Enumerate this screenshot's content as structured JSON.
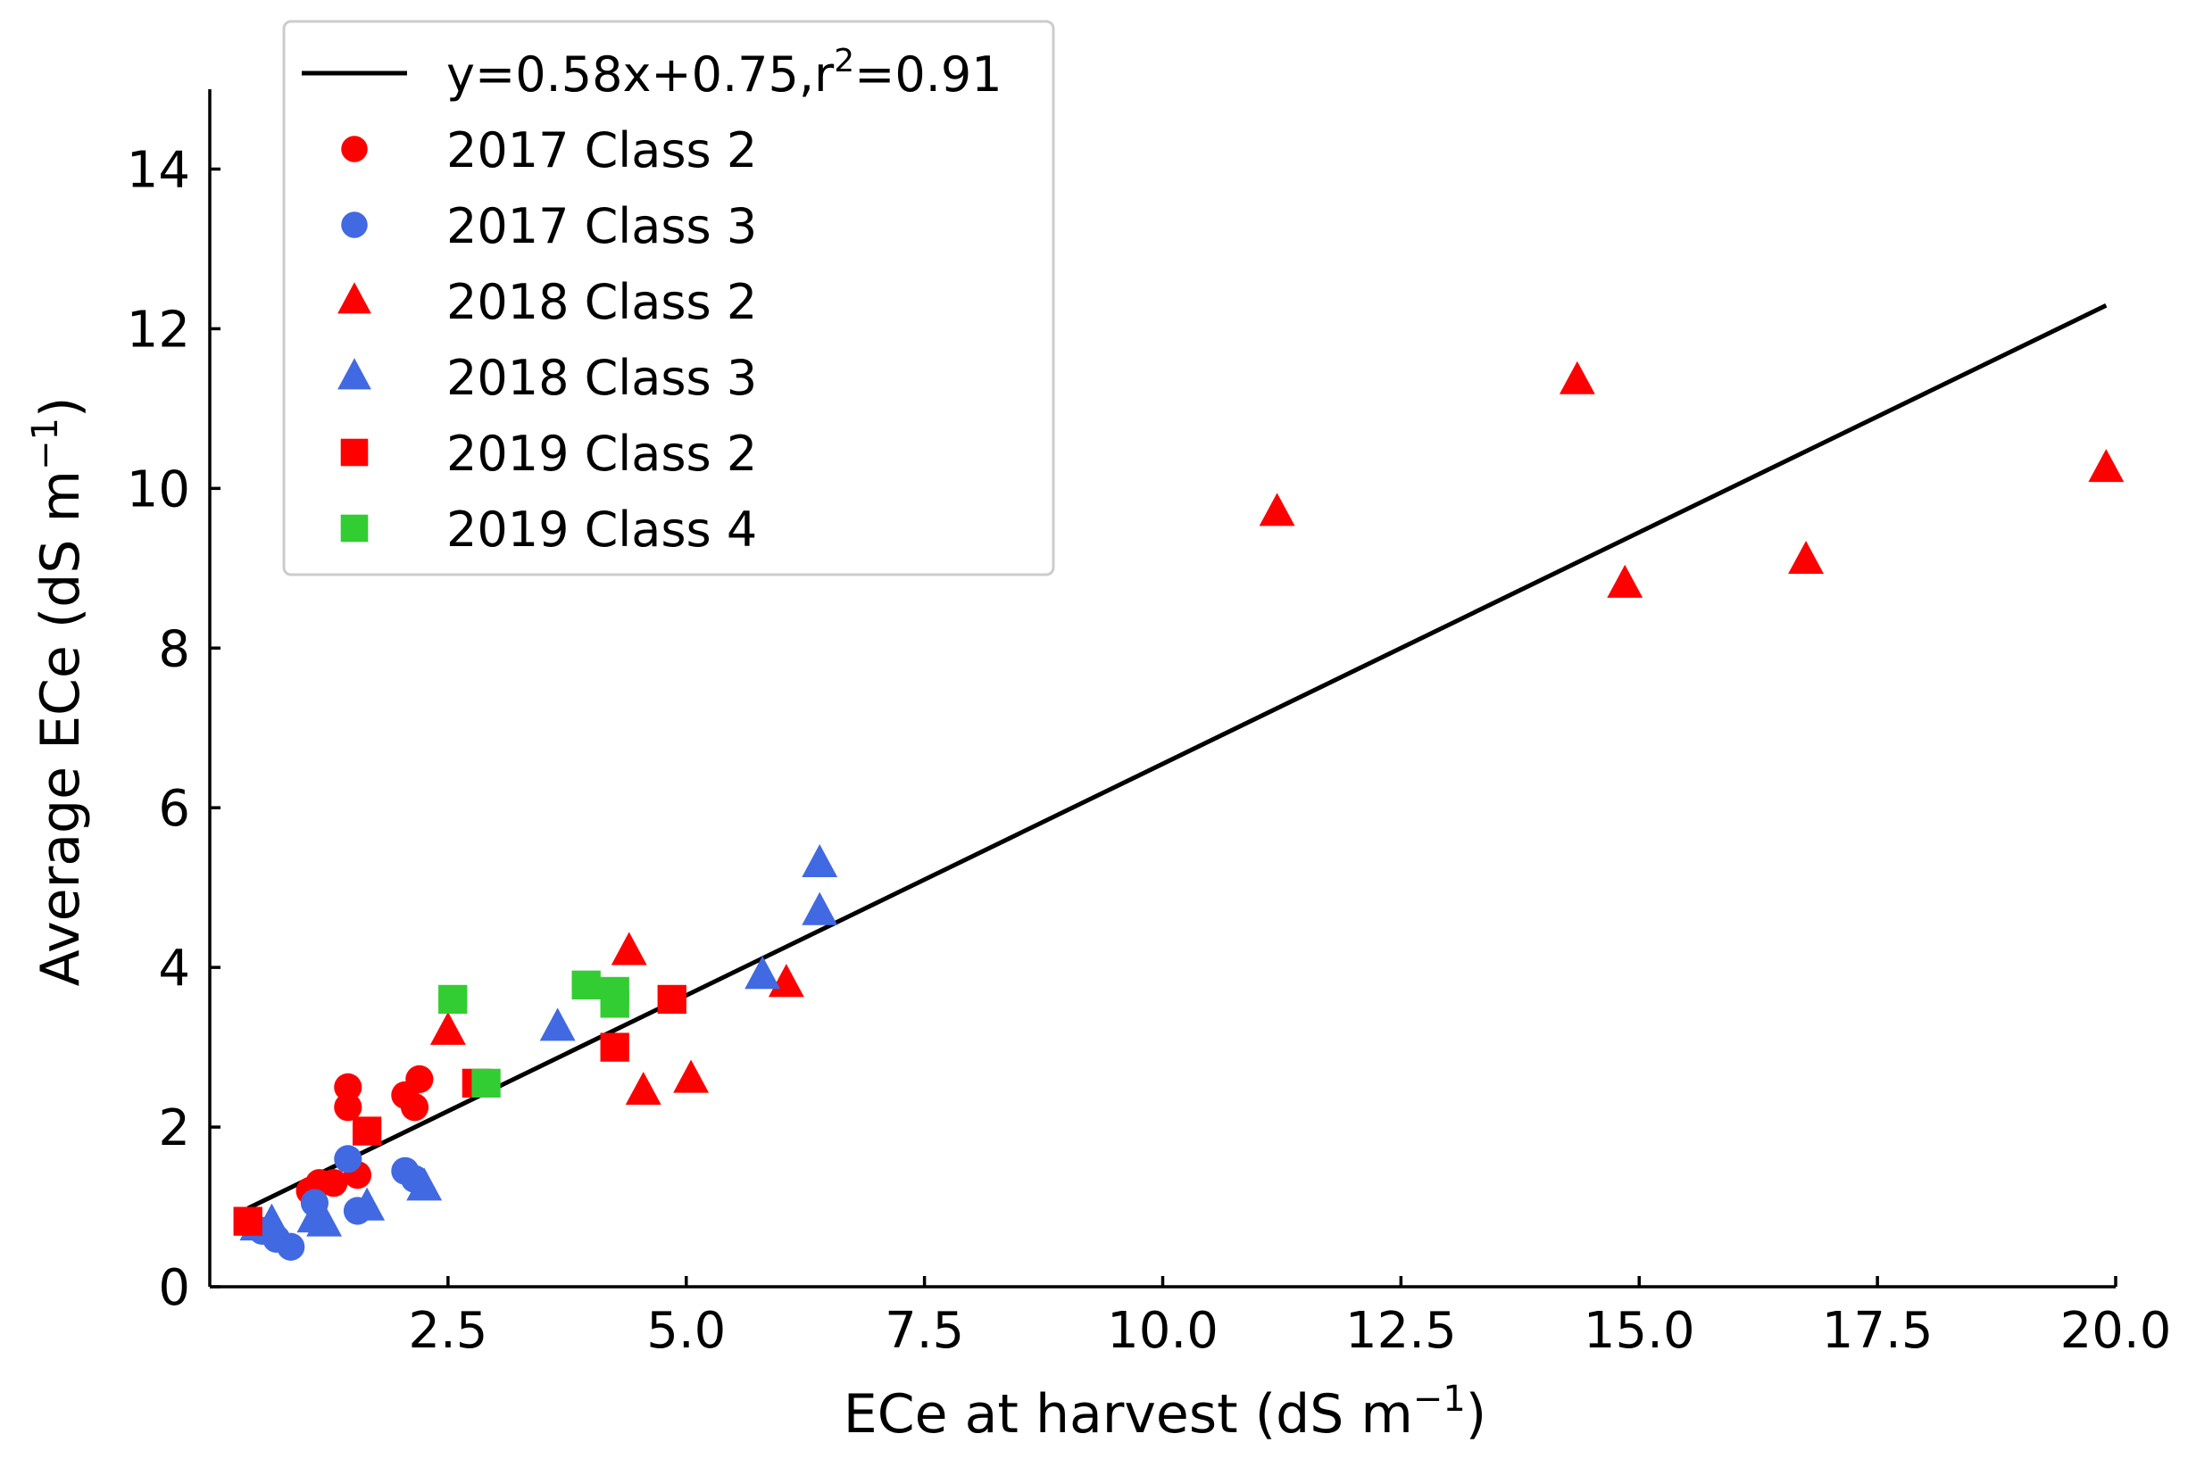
{
  "chart_data": {
    "type": "scatter",
    "title": "",
    "xlabel": "ECe at harvest (dS m",
    "xlabel_sup": "−1",
    "xlabel_end": ")",
    "ylabel": "Average ECe (dS m",
    "ylabel_sup": "−1",
    "ylabel_end": ")",
    "xlim": [
      0.0,
      20.0
    ],
    "ylim": [
      0,
      15
    ],
    "xticks": [
      2.5,
      5.0,
      7.5,
      10.0,
      12.5,
      15.0,
      17.5,
      20.0
    ],
    "xtick_labels": [
      "2.5",
      "5.0",
      "7.5",
      "10.0",
      "12.5",
      "15.0",
      "17.5",
      "20.0"
    ],
    "yticks": [
      0,
      2,
      4,
      6,
      8,
      10,
      12,
      14
    ],
    "ytick_labels": [
      "0",
      "2",
      "4",
      "6",
      "8",
      "10",
      "12",
      "14"
    ],
    "legend_position": "top-left",
    "fit_line": {
      "label_main": "y=0.58x+0.75,r",
      "label_sup": "2",
      "label_end": "=0.91",
      "slope": 0.58,
      "intercept": 0.75,
      "x_range": [
        0.4,
        19.9
      ],
      "color": "#000000"
    },
    "series": [
      {
        "name": "2017 Class 2",
        "marker": "circle",
        "color": "#ff0000",
        "points": [
          [
            1.05,
            1.2
          ],
          [
            1.15,
            1.3
          ],
          [
            1.3,
            1.3
          ],
          [
            1.45,
            2.5
          ],
          [
            1.45,
            2.25
          ],
          [
            1.55,
            1.4
          ],
          [
            2.05,
            2.4
          ],
          [
            2.15,
            2.25
          ],
          [
            2.2,
            2.6
          ]
        ]
      },
      {
        "name": "2017 Class 3",
        "marker": "circle",
        "color": "#4169e1",
        "points": [
          [
            0.55,
            0.7
          ],
          [
            0.7,
            0.6
          ],
          [
            0.85,
            0.5
          ],
          [
            1.1,
            1.05
          ],
          [
            1.45,
            1.6
          ],
          [
            1.55,
            0.95
          ],
          [
            2.05,
            1.45
          ],
          [
            2.15,
            1.35
          ]
        ]
      },
      {
        "name": "2018 Class 2",
        "marker": "triangle",
        "color": "#ff0000",
        "points": [
          [
            2.5,
            3.2
          ],
          [
            4.4,
            4.2
          ],
          [
            4.55,
            2.45
          ],
          [
            5.05,
            2.6
          ],
          [
            6.05,
            3.8
          ],
          [
            11.2,
            9.7
          ],
          [
            14.35,
            11.35
          ],
          [
            14.85,
            8.8
          ],
          [
            16.75,
            9.1
          ],
          [
            19.9,
            10.25
          ]
        ]
      },
      {
        "name": "2018 Class 3",
        "marker": "triangle",
        "color": "#4169e1",
        "points": [
          [
            0.5,
            0.75
          ],
          [
            0.65,
            0.8
          ],
          [
            1.1,
            0.85
          ],
          [
            1.2,
            0.8
          ],
          [
            1.65,
            1.0
          ],
          [
            2.25,
            1.25
          ],
          [
            3.65,
            3.25
          ],
          [
            5.8,
            3.9
          ],
          [
            6.4,
            5.3
          ],
          [
            6.4,
            4.7
          ]
        ]
      },
      {
        "name": "2019 Class 2",
        "marker": "square",
        "color": "#ff0000",
        "points": [
          [
            0.4,
            0.82
          ],
          [
            1.65,
            1.95
          ],
          [
            2.8,
            2.55
          ],
          [
            4.25,
            3.0
          ],
          [
            4.85,
            3.6
          ]
        ]
      },
      {
        "name": "2019 Class 4",
        "marker": "square",
        "color": "#32cd32",
        "points": [
          [
            2.55,
            3.6
          ],
          [
            2.9,
            2.55
          ],
          [
            3.95,
            3.78
          ],
          [
            4.25,
            3.7
          ],
          [
            4.25,
            3.55
          ]
        ]
      }
    ]
  }
}
